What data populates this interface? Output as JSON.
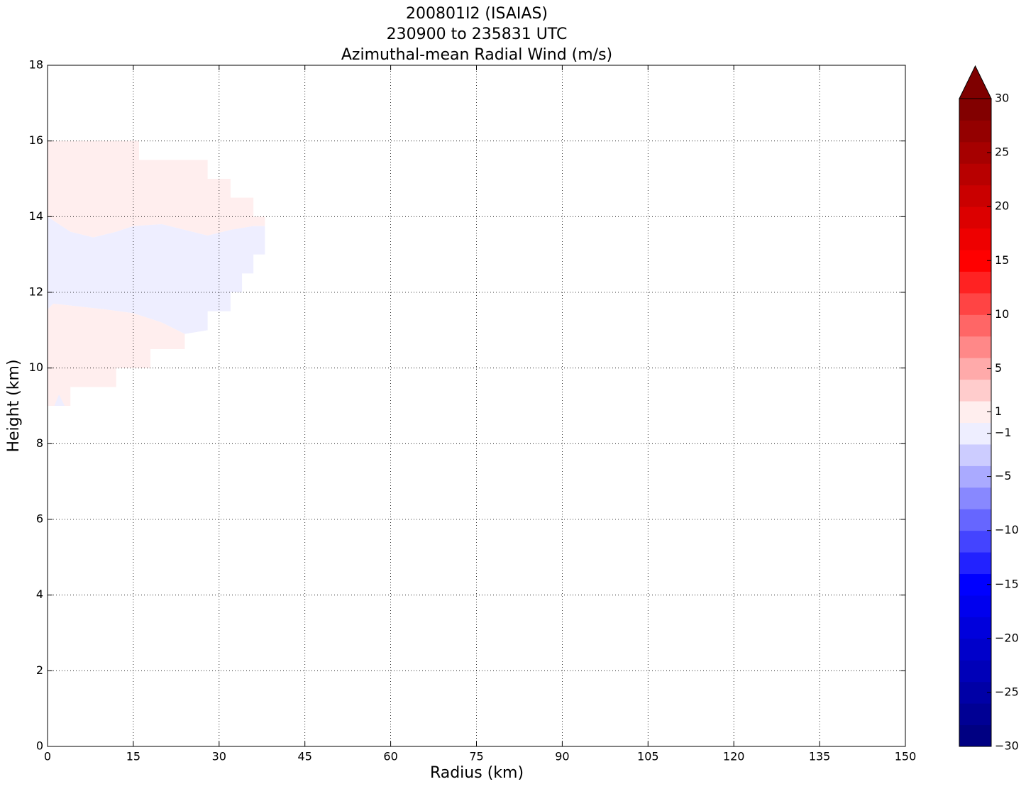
{
  "chart_data": {
    "type": "contourf",
    "title": [
      "200801I2 (ISAIAS)",
      "230900 to 235831 UTC",
      "Azimuthal-mean Radial Wind (m/s)"
    ],
    "xlabel": "Radius (km)",
    "ylabel": "Height (km)",
    "xlim": [
      0,
      150
    ],
    "xticks": [
      0,
      15,
      30,
      45,
      60,
      75,
      90,
      105,
      120,
      135,
      150
    ],
    "ylim": [
      0,
      18
    ],
    "yticks": [
      0,
      2,
      4,
      6,
      8,
      10,
      12,
      14,
      16,
      18
    ],
    "grid": true,
    "regions": [
      {
        "value": 1,
        "r": [
          0,
          16,
          16,
          28,
          28,
          32,
          32,
          36,
          36,
          38,
          38,
          36,
          32,
          28,
          24,
          20,
          15,
          12,
          8,
          4,
          0
        ],
        "z": [
          16,
          16,
          15.5,
          15.5,
          15,
          15,
          14.5,
          14.5,
          14,
          14,
          13.75,
          13.75,
          13.65,
          13.5,
          13.65,
          13.8,
          13.75,
          13.6,
          13.45,
          13.6,
          14
        ]
      },
      {
        "value": -1,
        "r": [
          0,
          4,
          8,
          12,
          15,
          20,
          24,
          28,
          32,
          36,
          38,
          38,
          36,
          36,
          34,
          34,
          32,
          32,
          28,
          28,
          24,
          20,
          15,
          10,
          4,
          1,
          0
        ],
        "z": [
          14,
          13.6,
          13.45,
          13.6,
          13.75,
          13.8,
          13.65,
          13.5,
          13.65,
          13.75,
          13.75,
          13,
          13,
          12.5,
          12.5,
          12,
          12,
          11.5,
          11.5,
          11,
          10.9,
          11.2,
          11.45,
          11.55,
          11.65,
          11.7,
          11.55
        ]
      },
      {
        "value": 1,
        "r": [
          0,
          1,
          4,
          10,
          15,
          20,
          24,
          24,
          18,
          18,
          12,
          12,
          4,
          4,
          0
        ],
        "z": [
          11.55,
          11.7,
          11.65,
          11.55,
          11.45,
          11.2,
          10.9,
          10.5,
          10.5,
          10,
          10,
          9.5,
          9.5,
          9,
          9
        ]
      },
      {
        "value": -1,
        "r": [
          1.2,
          2,
          3
        ],
        "z": [
          9,
          9.3,
          9
        ]
      }
    ],
    "colorbar": {
      "clim": [
        -30,
        30
      ],
      "extend": "max",
      "extend_color": "#7f0000",
      "levels": [
        -30,
        -28,
        -26,
        -24,
        -22,
        -20,
        -18,
        -16,
        -14,
        -12,
        -10,
        -8,
        -6,
        -4,
        -2,
        0,
        2,
        4,
        6,
        8,
        10,
        12,
        14,
        16,
        18,
        20,
        22,
        24,
        26,
        28,
        30
      ],
      "colors": [
        "#000082",
        "#000094",
        "#0000a6",
        "#0000b8",
        "#0000ca",
        "#0000dc",
        "#0000ee",
        "#0000ff",
        "#2222ff",
        "#4444ff",
        "#6666ff",
        "#8888ff",
        "#aaaaff",
        "#ccccff",
        "#eeeeff",
        "#ffeeee",
        "#ffcccc",
        "#ffaaaa",
        "#ff8888",
        "#ff6666",
        "#ff4444",
        "#ff2222",
        "#ff0000",
        "#ee0000",
        "#dc0000",
        "#ca0000",
        "#b80000",
        "#a60000",
        "#940000",
        "#820000"
      ],
      "ticks": [
        30,
        25,
        20,
        15,
        10,
        5,
        1,
        {
          "value": -1,
          "label": "−1"
        },
        {
          "value": -5,
          "label": "−5"
        },
        {
          "value": -10,
          "label": "−10"
        },
        {
          "value": -15,
          "label": "−15"
        },
        {
          "value": -20,
          "label": "−20"
        },
        {
          "value": -25,
          "label": "−25"
        },
        {
          "value": -30,
          "label": "−30"
        }
      ]
    }
  }
}
